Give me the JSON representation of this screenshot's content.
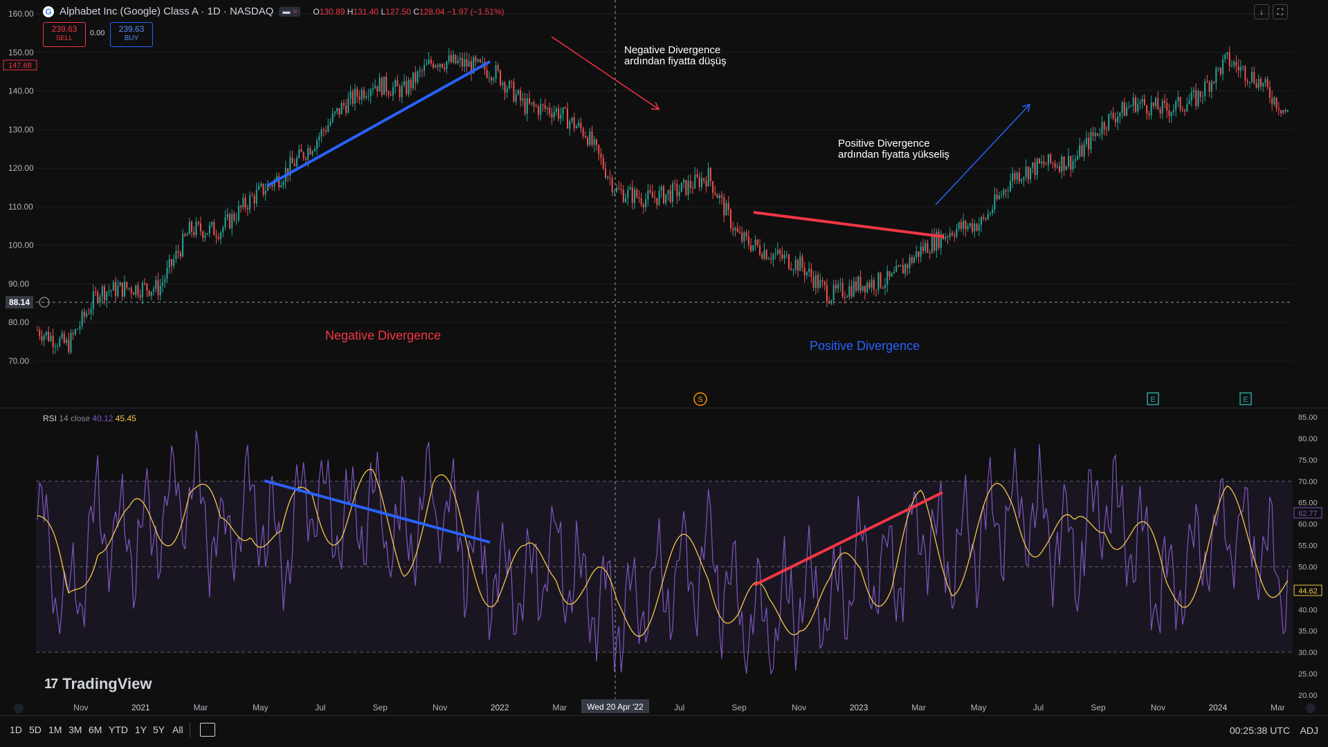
{
  "header": {
    "logo_letter": "G",
    "title": "Alphabet Inc (Google) Class A · 1D · NASDAQ",
    "ohlc": {
      "o_label": "O",
      "o": "130.89",
      "h_label": "H",
      "h": "131.40",
      "l_label": "L",
      "l": "127.50",
      "c_label": "C",
      "c": "128.04",
      "change": "−1.97 (−1.51%)"
    }
  },
  "trade": {
    "sell_price": "239.63",
    "sell_label": "SELL",
    "spread": "0.00",
    "buy_price": "239.63",
    "buy_label": "BUY"
  },
  "annotations": {
    "neg_arrow_text_1": "Negative Divergence",
    "neg_arrow_text_2": "ardından fiyatta düşüş",
    "pos_arrow_text_1": "Positive Divergence",
    "pos_arrow_text_2": "ardından fiyatta yükseliş",
    "neg_label": "Negative Divergence",
    "pos_label": "Positive Divergence"
  },
  "colors": {
    "neg": "#f23645",
    "pos": "#2962ff",
    "up": "#26a69a",
    "down": "#ef5350",
    "rsi": "#7e57c2",
    "rsi_ma": "#f7c948"
  },
  "price_axis": {
    "ticks": [
      "160.00",
      "150.00",
      "140.00",
      "130.00",
      "120.00",
      "110.00",
      "100.00",
      "90.00",
      "80.00",
      "70.00"
    ],
    "badge_value": "147.68",
    "crosshair_value": "88.14"
  },
  "rsi": {
    "title": "RSI",
    "params": "14 close",
    "value1": "40.12",
    "value2": "45.45",
    "ticks": [
      "85.00",
      "80.00",
      "75.00",
      "70.00",
      "65.00",
      "60.00",
      "55.00",
      "50.00",
      "45.00",
      "40.00",
      "35.00",
      "30.00",
      "25.00",
      "20.00"
    ],
    "badge_rsi": "62.77",
    "badge_ma": "44.62"
  },
  "markers": {
    "split": "S",
    "earnings1": "E",
    "earnings2": "E"
  },
  "time_axis": {
    "labels": [
      "Nov",
      "2021",
      "Mar",
      "May",
      "Jul",
      "Sep",
      "Nov",
      "2022",
      "Mar",
      "Jul",
      "Sep",
      "Nov",
      "2023",
      "Mar",
      "May",
      "Jul",
      "Sep",
      "Nov",
      "2024",
      "Mar"
    ],
    "crosshair_date": "Wed 20 Apr '22"
  },
  "brand": "TradingView",
  "bottom": {
    "timeframes": [
      "1D",
      "5D",
      "1M",
      "3M",
      "6M",
      "YTD",
      "1Y",
      "5Y",
      "All"
    ],
    "clock": "00:25:38 UTC",
    "adj": "ADJ"
  },
  "chart_data": {
    "type": "line",
    "title": "Alphabet Inc (Google) Class A · 1D · NASDAQ",
    "x": [
      "2020-10",
      "2020-11",
      "2020-12",
      "2021-01",
      "2021-02",
      "2021-03",
      "2021-04",
      "2021-05",
      "2021-06",
      "2021-07",
      "2021-08",
      "2021-09",
      "2021-10",
      "2021-11",
      "2021-12",
      "2022-01",
      "2022-02",
      "2022-03",
      "2022-04",
      "2022-05",
      "2022-06",
      "2022-07",
      "2022-08",
      "2022-09",
      "2022-10",
      "2022-11",
      "2022-12",
      "2023-01",
      "2023-02",
      "2023-03",
      "2023-04",
      "2023-05",
      "2023-06",
      "2023-07",
      "2023-08",
      "2023-09",
      "2023-10",
      "2023-11",
      "2023-12",
      "2024-01",
      "2024-02",
      "2024-03"
    ],
    "series": [
      {
        "values": [
          78,
          74,
          88,
          89,
          89,
          104,
          104,
          112,
          118,
          126,
          136,
          142,
          140,
          148,
          147,
          145,
          136,
          135,
          129,
          114,
          112,
          114,
          118,
          102,
          98,
          95,
          87,
          90,
          91,
          99,
          104,
          106,
          118,
          121,
          122,
          132,
          137,
          135,
          138,
          148,
          143,
          134
        ]
      },
      {
        "name": "RSI",
        "values": [
          62,
          38,
          62,
          56,
          60,
          70,
          54,
          66,
          52,
          68,
          62,
          64,
          56,
          66,
          56,
          48,
          46,
          54,
          44,
          38,
          44,
          48,
          52,
          40,
          36,
          44,
          40,
          52,
          48,
          60,
          52,
          58,
          64,
          60,
          52,
          66,
          56,
          44,
          52,
          60,
          56,
          46
        ]
      }
    ],
    "ylim": [
      70,
      160
    ],
    "rsi_ylim": [
      20,
      85
    ],
    "rsi_bands": [
      30,
      50,
      70
    ]
  }
}
